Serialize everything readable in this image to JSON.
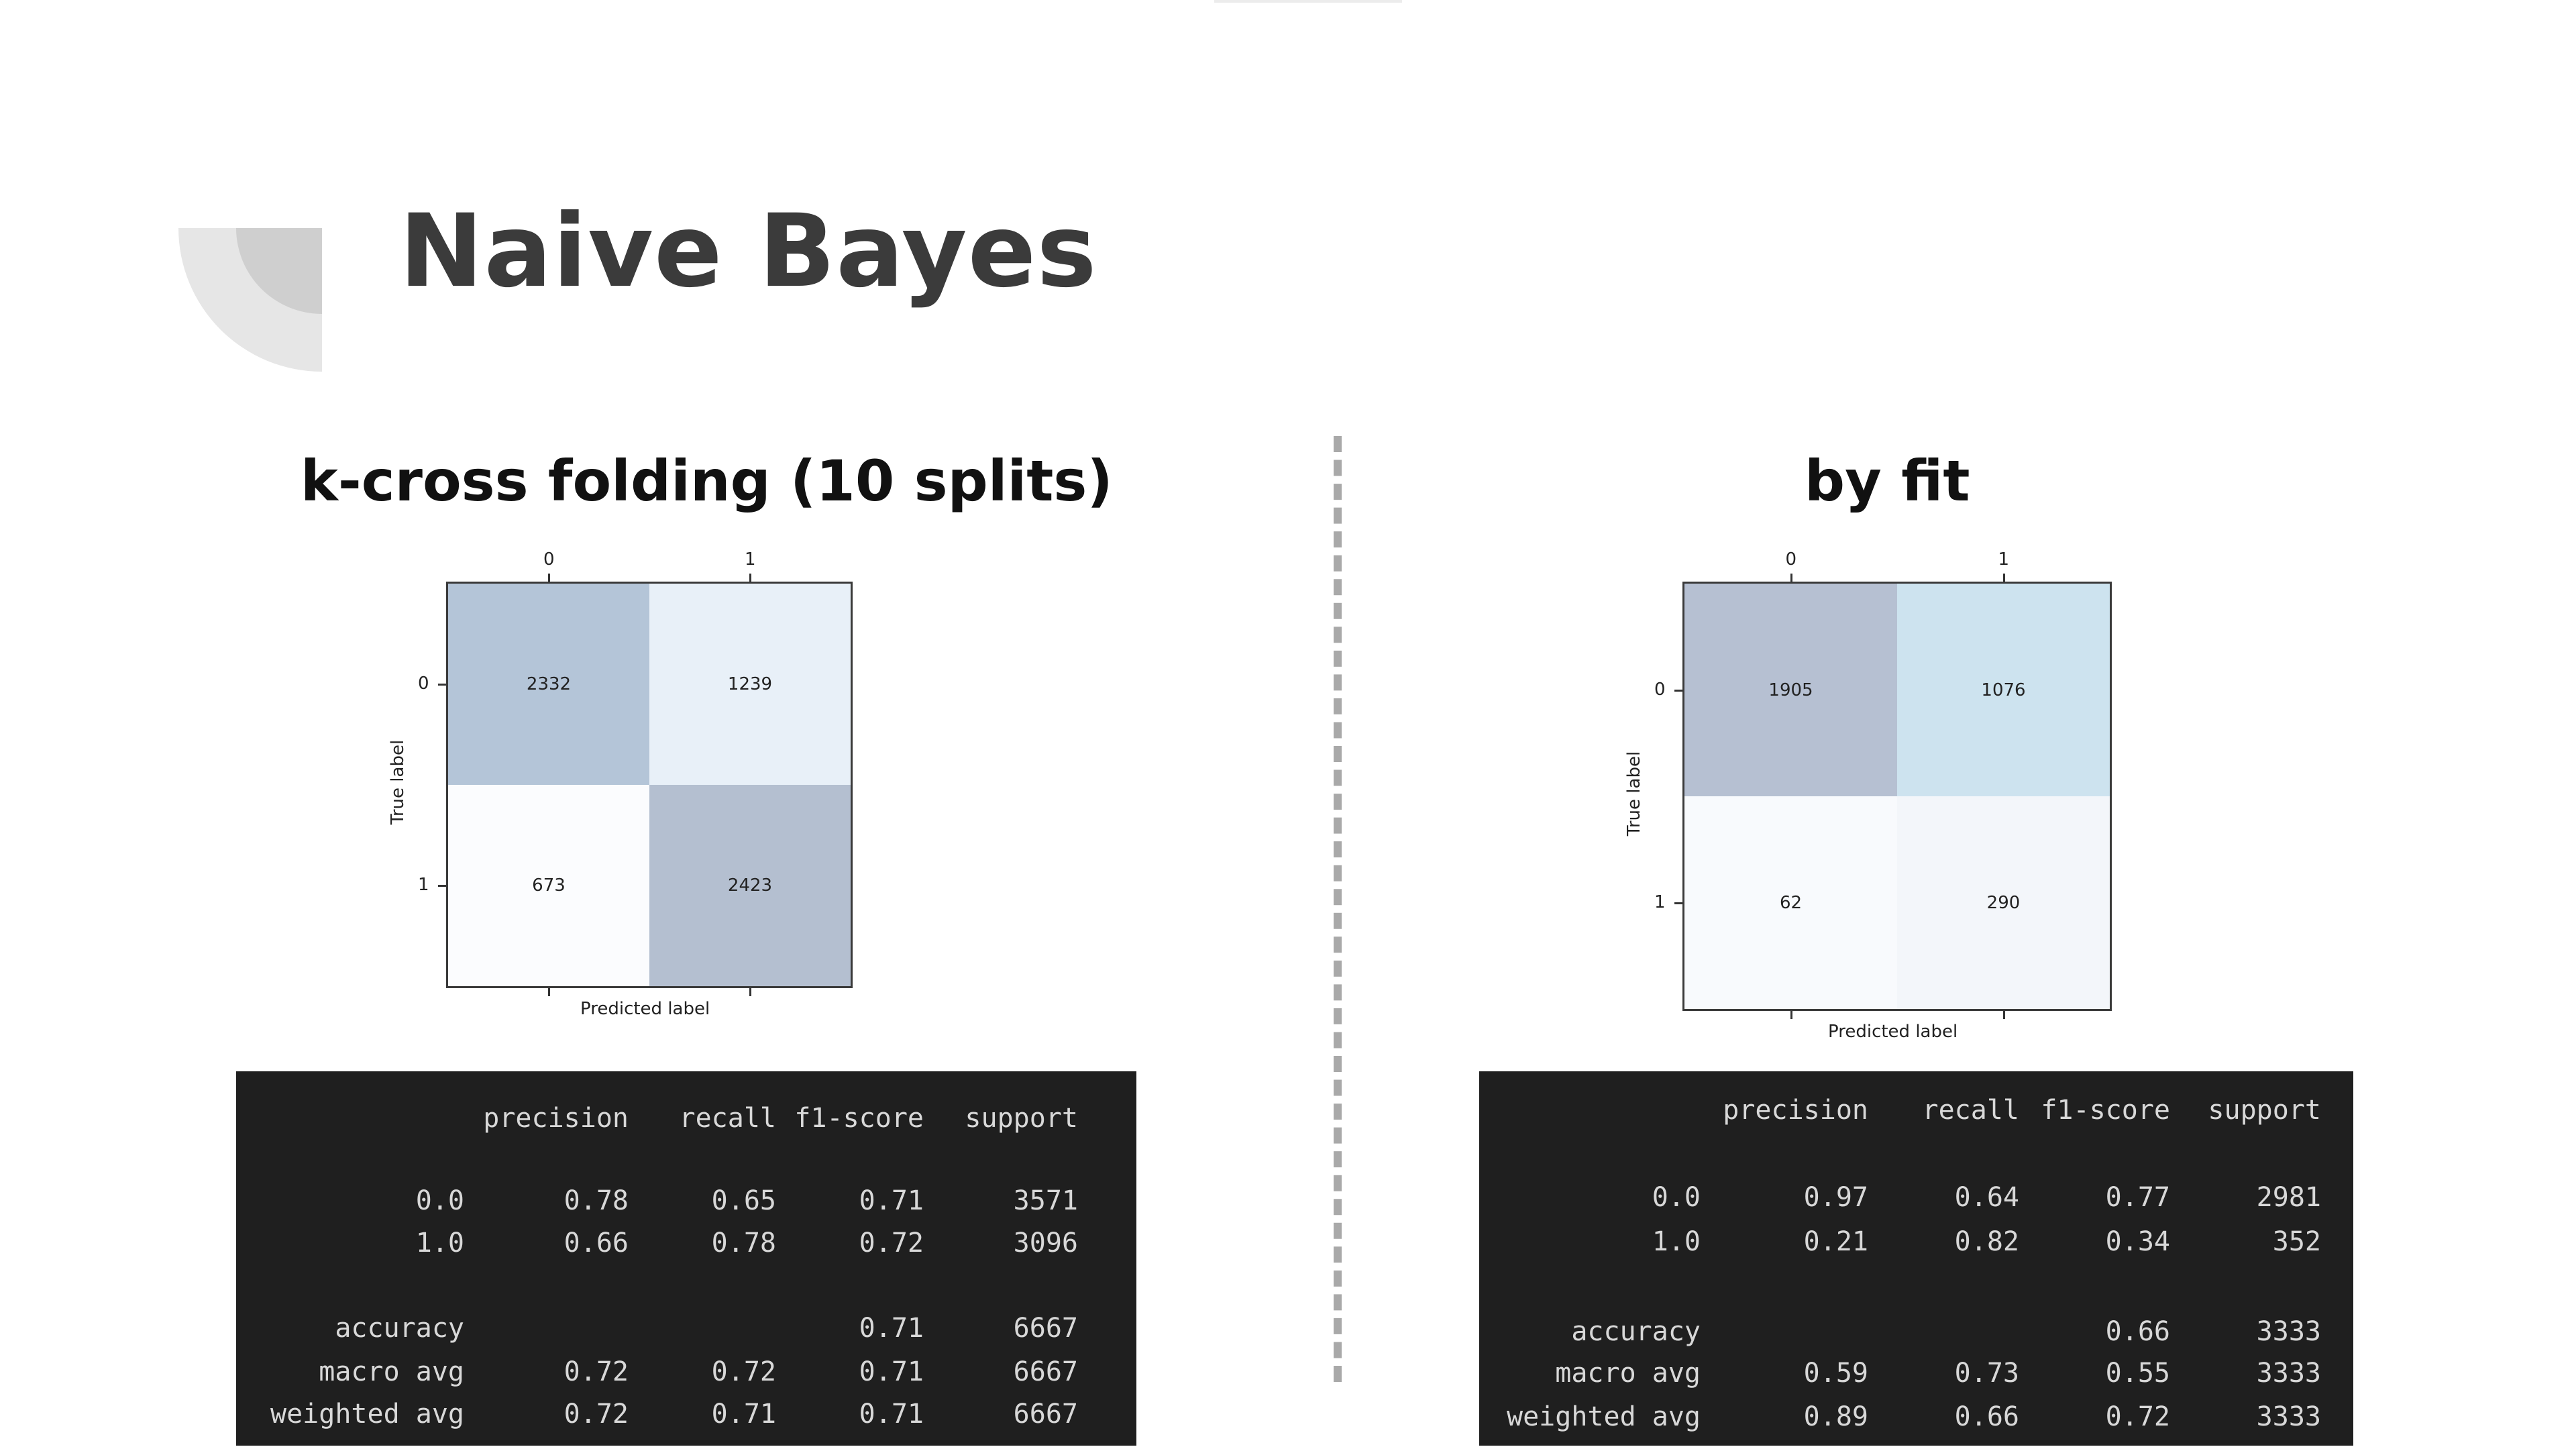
{
  "slide": {
    "title": "Naive Bayes",
    "left_heading": "k-cross folding (10 splits)",
    "right_heading": "by fit"
  },
  "matrices": [
    {
      "id": "kfold",
      "x_ticks": [
        "0",
        "1"
      ],
      "y_ticks": [
        "0",
        "1"
      ],
      "xlabel": "Predicted label",
      "ylabel": "True label",
      "cells": [
        [
          "2332",
          "1239"
        ],
        [
          "673",
          "2423"
        ]
      ],
      "colors": [
        [
          "#b4c5d8",
          "#e8f0f8"
        ],
        [
          "#fbfcfe",
          "#b4bfd0"
        ]
      ]
    },
    {
      "id": "fit",
      "x_ticks": [
        "0",
        "1"
      ],
      "y_ticks": [
        "0",
        "1"
      ],
      "xlabel": "Predicted label",
      "ylabel": "True label",
      "cells": [
        [
          "1905",
          "1076"
        ],
        [
          "62",
          "290"
        ]
      ],
      "colors": [
        [
          "#b6c0d2",
          "#cde3ef"
        ],
        [
          "#f8fafd",
          "#f3f6fa"
        ]
      ]
    }
  ],
  "reports": [
    {
      "header": [
        "precision",
        "recall",
        "f1-score",
        "support"
      ],
      "rows": [
        {
          "label": "0.0",
          "precision": "0.78",
          "recall": "0.65",
          "f1": "0.71",
          "support": "3571"
        },
        {
          "label": "1.0",
          "precision": "0.66",
          "recall": "0.78",
          "f1": "0.72",
          "support": "3096"
        },
        {
          "label": "accuracy",
          "precision": "",
          "recall": "",
          "f1": "0.71",
          "support": "6667"
        },
        {
          "label": "macro avg",
          "precision": "0.72",
          "recall": "0.72",
          "f1": "0.71",
          "support": "6667"
        },
        {
          "label": "weighted avg",
          "precision": "0.72",
          "recall": "0.71",
          "f1": "0.71",
          "support": "6667"
        }
      ]
    },
    {
      "header": [
        "precision",
        "recall",
        "f1-score",
        "support"
      ],
      "rows": [
        {
          "label": "0.0",
          "precision": "0.97",
          "recall": "0.64",
          "f1": "0.77",
          "support": "2981"
        },
        {
          "label": "1.0",
          "precision": "0.21",
          "recall": "0.82",
          "f1": "0.34",
          "support": "352"
        },
        {
          "label": "accuracy",
          "precision": "",
          "recall": "",
          "f1": "0.66",
          "support": "3333"
        },
        {
          "label": "macro avg",
          "precision": "0.59",
          "recall": "0.73",
          "f1": "0.55",
          "support": "3333"
        },
        {
          "label": "weighted avg",
          "precision": "0.89",
          "recall": "0.66",
          "f1": "0.72",
          "support": "3333"
        }
      ]
    }
  ]
}
